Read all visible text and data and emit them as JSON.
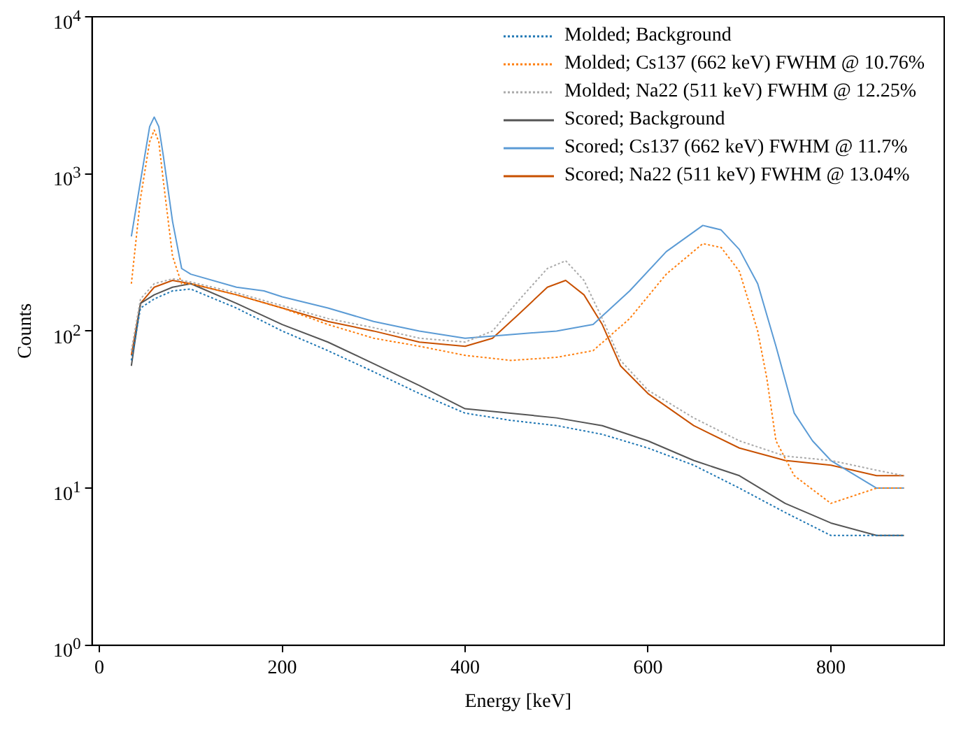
{
  "chart_data": {
    "type": "line",
    "xlabel": "Energy [keV]",
    "ylabel": "Counts",
    "log": "y",
    "legend": "top right",
    "grid": false,
    "marker": "none",
    "xlim": [
      -8,
      924
    ],
    "xticks": [
      0,
      200,
      400,
      600,
      800
    ],
    "ylim": [
      1,
      10000
    ],
    "yticks": [
      {
        "value": 1,
        "label": "10$^{0}$"
      },
      {
        "value": 10,
        "label": "10$^{1}$"
      },
      {
        "value": 100,
        "label": "10$^{2}$"
      },
      {
        "value": 1000,
        "label": "10$^{3}$"
      },
      {
        "value": 10000,
        "label": "10$^{4}$"
      }
    ],
    "series": [
      {
        "name": "Molded; Background",
        "color": "#1f77b4",
        "line_style": "dotted",
        "x": [
          35,
          45,
          60,
          80,
          100,
          150,
          200,
          250,
          300,
          350,
          400,
          450,
          500,
          550,
          600,
          650,
          700,
          750,
          800,
          850,
          880
        ],
        "values": [
          65,
          140,
          160,
          180,
          185,
          140,
          100,
          75,
          55,
          40,
          30,
          27,
          25,
          22,
          18,
          14,
          10,
          7,
          5,
          5,
          5
        ]
      },
      {
        "name": "Molded; Cs137 (662 keV) FWHM @ 10.76%",
        "color": "#ff7f0e",
        "line_style": "dotted",
        "x": [
          35,
          45,
          55,
          60,
          65,
          70,
          80,
          90,
          100,
          150,
          200,
          250,
          300,
          350,
          400,
          450,
          500,
          540,
          580,
          620,
          660,
          680,
          700,
          720,
          730,
          740,
          760,
          800,
          850,
          880
        ],
        "values": [
          200,
          700,
          1600,
          1900,
          1600,
          900,
          300,
          200,
          200,
          170,
          140,
          110,
          90,
          80,
          70,
          65,
          68,
          75,
          120,
          230,
          360,
          340,
          240,
          100,
          50,
          20,
          12,
          8,
          10,
          10
        ]
      },
      {
        "name": "Molded; Na22 (511 keV) FWHM @ 12.25%",
        "color": "#aaaaaa",
        "line_style": "dotted",
        "x": [
          35,
          45,
          60,
          80,
          100,
          150,
          200,
          250,
          300,
          350,
          400,
          430,
          460,
          490,
          510,
          530,
          550,
          570,
          600,
          650,
          700,
          750,
          800,
          850,
          880
        ],
        "values": [
          75,
          160,
          200,
          215,
          205,
          175,
          145,
          120,
          105,
          90,
          85,
          100,
          160,
          250,
          280,
          210,
          120,
          65,
          42,
          28,
          20,
          16,
          15,
          13,
          12
        ]
      },
      {
        "name": "Scored; Background",
        "color": "#555555",
        "line_style": "solid",
        "x": [
          35,
          45,
          60,
          80,
          100,
          150,
          200,
          250,
          300,
          350,
          400,
          450,
          500,
          550,
          600,
          650,
          700,
          750,
          800,
          850,
          880
        ],
        "values": [
          60,
          150,
          170,
          190,
          200,
          150,
          110,
          85,
          62,
          45,
          32,
          30,
          28,
          25,
          20,
          15,
          12,
          8,
          6,
          5,
          5
        ]
      },
      {
        "name": "Scored; Cs137 (662 keV) FWHM @ 11.7%",
        "color": "#5b9bd5",
        "line_style": "solid",
        "x": [
          35,
          45,
          55,
          60,
          65,
          70,
          80,
          90,
          100,
          150,
          180,
          200,
          250,
          300,
          350,
          400,
          450,
          500,
          540,
          580,
          620,
          660,
          680,
          700,
          720,
          740,
          760,
          780,
          800,
          850,
          880
        ],
        "values": [
          400,
          900,
          2000,
          2300,
          2000,
          1300,
          500,
          250,
          230,
          190,
          180,
          165,
          140,
          115,
          100,
          90,
          95,
          100,
          110,
          180,
          320,
          470,
          440,
          330,
          200,
          80,
          30,
          20,
          15,
          10,
          10
        ]
      },
      {
        "name": "Scored; Na22 (511 keV) FWHM @ 13.04%",
        "color": "#c85000",
        "line_style": "solid",
        "x": [
          35,
          45,
          60,
          80,
          100,
          150,
          200,
          250,
          300,
          350,
          400,
          430,
          460,
          490,
          510,
          530,
          550,
          570,
          600,
          650,
          700,
          750,
          800,
          850,
          880
        ],
        "values": [
          70,
          150,
          190,
          210,
          200,
          170,
          140,
          115,
          100,
          85,
          80,
          90,
          130,
          190,
          210,
          170,
          110,
          60,
          40,
          25,
          18,
          15,
          14,
          12,
          12
        ]
      }
    ]
  }
}
